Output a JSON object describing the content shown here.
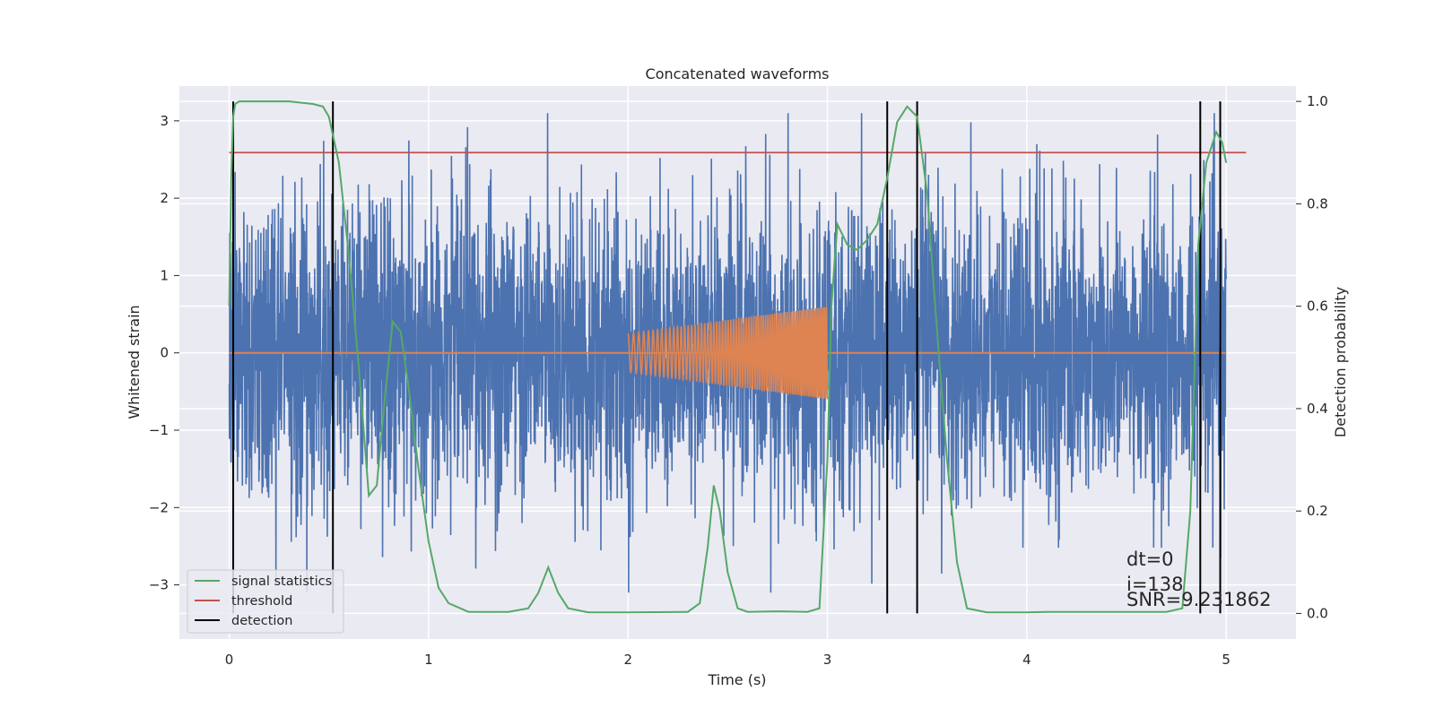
{
  "chart_data": {
    "type": "line",
    "title": "Concatenated waveforms",
    "xlabel": "Time (s)",
    "ylabel": "Whitened strain",
    "ylabel_right": "Detection probability",
    "xlim": [
      -0.25,
      5.35
    ],
    "ylim": [
      -3.7,
      3.45
    ],
    "ylim_right": [
      -0.05,
      1.03
    ],
    "x_ticks": [
      0,
      1,
      2,
      3,
      4,
      5
    ],
    "x_tick_labels": [
      "0",
      "1",
      "2",
      "3",
      "4",
      "5"
    ],
    "y_ticks": [
      -3,
      -2,
      -1,
      0,
      1,
      2,
      3
    ],
    "y_tick_labels": [
      "−3",
      "−2",
      "−1",
      "0",
      "1",
      "2",
      "3"
    ],
    "y_right_ticks": [
      0.0,
      0.2,
      0.4,
      0.6,
      0.8,
      1.0
    ],
    "y_right_tick_labels": [
      "0.0",
      "0.2",
      "0.4",
      "0.6",
      "0.8",
      "1.0"
    ],
    "grid": true,
    "background": "#eaeaf2",
    "noise": {
      "x_range": [
        0,
        5
      ],
      "amplitude_rms": 0.95,
      "peak_abs": 3.1,
      "color": "#4c72b0"
    },
    "injection": {
      "x_range": [
        2,
        3
      ],
      "amplitude_start": 0.25,
      "amplitude_end": 0.6,
      "freq_start_hz": 35,
      "freq_end_hz": 110,
      "baseline": 0,
      "color": "#dd8452"
    },
    "series": [
      {
        "name": "signal statistics",
        "axis": "right",
        "color": "#55a868",
        "x": [
          0.0,
          0.01,
          0.02,
          0.03,
          0.05,
          0.08,
          0.15,
          0.3,
          0.42,
          0.47,
          0.5,
          0.55,
          0.6,
          0.65,
          0.7,
          0.74,
          0.78,
          0.82,
          0.86,
          0.9,
          0.95,
          1.0,
          1.05,
          1.1,
          1.2,
          1.4,
          1.5,
          1.55,
          1.6,
          1.65,
          1.7,
          1.8,
          2.0,
          2.3,
          2.36,
          2.4,
          2.43,
          2.46,
          2.5,
          2.55,
          2.6,
          2.75,
          2.9,
          2.96,
          3.0,
          3.02,
          3.05,
          3.1,
          3.15,
          3.2,
          3.25,
          3.3,
          3.35,
          3.4,
          3.45,
          3.5,
          3.55,
          3.6,
          3.65,
          3.7,
          3.8,
          4.0,
          4.1,
          4.5,
          4.7,
          4.78,
          4.82,
          4.86,
          4.9,
          4.95,
          4.98,
          5.0
        ],
        "y": [
          0.6,
          0.85,
          0.97,
          0.995,
          1.0,
          1.0,
          1.0,
          1.0,
          0.995,
          0.99,
          0.97,
          0.88,
          0.7,
          0.48,
          0.23,
          0.25,
          0.42,
          0.57,
          0.55,
          0.44,
          0.28,
          0.14,
          0.05,
          0.02,
          0.003,
          0.003,
          0.01,
          0.04,
          0.09,
          0.04,
          0.01,
          0.002,
          0.002,
          0.003,
          0.02,
          0.13,
          0.25,
          0.2,
          0.08,
          0.01,
          0.003,
          0.004,
          0.003,
          0.01,
          0.3,
          0.6,
          0.76,
          0.72,
          0.71,
          0.73,
          0.76,
          0.85,
          0.96,
          0.99,
          0.97,
          0.82,
          0.55,
          0.3,
          0.1,
          0.01,
          0.002,
          0.002,
          0.003,
          0.003,
          0.003,
          0.01,
          0.2,
          0.72,
          0.88,
          0.94,
          0.92,
          0.88
        ]
      },
      {
        "name": "threshold",
        "axis": "right",
        "color": "#c44e52",
        "x": [
          0.0,
          5.1
        ],
        "y": [
          0.9,
          0.9
        ]
      },
      {
        "name": "detection",
        "axis": "right",
        "color": "#000000",
        "x": [
          0.02,
          0.52,
          3.3,
          3.45,
          4.87,
          4.97
        ],
        "y": [
          1.0,
          1.0,
          1.0,
          1.0,
          1.0,
          1.0
        ]
      }
    ],
    "annotations": {
      "dt": "dt=0",
      "i": "i=138",
      "snr": "SNR=9.231862"
    },
    "legend": {
      "placement": "lower-left",
      "entries": [
        {
          "label": "signal statistics",
          "color": "#55a868"
        },
        {
          "label": "threshold",
          "color": "#c44e52"
        },
        {
          "label": "detection",
          "color": "#000000"
        }
      ]
    }
  }
}
